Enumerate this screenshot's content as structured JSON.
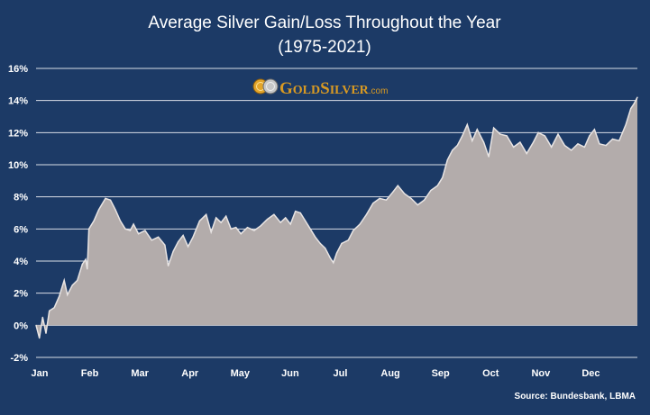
{
  "chart_data": {
    "type": "area",
    "title": "Average Silver Gain/Loss Throughout the Year",
    "subtitle": "(1975-2021)",
    "xlabel": "",
    "ylabel": "",
    "x_tick_labels": [
      "Jan",
      "Feb",
      "Mar",
      "Apr",
      "May",
      "Jun",
      "Jul",
      "Aug",
      "Sep",
      "Oct",
      "Nov",
      "Dec"
    ],
    "y_tick_labels": [
      "16%",
      "14%",
      "12%",
      "10%",
      "8%",
      "6%",
      "4%",
      "2%",
      "0%",
      "-2%"
    ],
    "ylim": [
      -2,
      16
    ],
    "y_unit": "%",
    "grid": true,
    "legend": "none",
    "fill_color": "#b3acab",
    "line_color": "#e8e4e3",
    "background_color": "#1c3a66",
    "series": [
      {
        "values": [
          {
            "x": "Jan 1",
            "y": 0.0
          },
          {
            "x": "Jan 3",
            "y": -0.8
          },
          {
            "x": "Jan 5",
            "y": 0.5
          },
          {
            "x": "Jan 7",
            "y": -0.5
          },
          {
            "x": "Jan 9",
            "y": 0.9
          },
          {
            "x": "Jan 12",
            "y": 1.1
          },
          {
            "x": "Jan 15",
            "y": 1.8
          },
          {
            "x": "Jan 18",
            "y": 2.8
          },
          {
            "x": "Jan 20",
            "y": 1.9
          },
          {
            "x": "Jan 23",
            "y": 2.5
          },
          {
            "x": "Jan 26",
            "y": 2.8
          },
          {
            "x": "Jan 29",
            "y": 3.8
          },
          {
            "x": "Jan 31",
            "y": 4.1
          },
          {
            "x": "Feb 1",
            "y": 3.5
          },
          {
            "x": "Feb 2",
            "y": 6.0
          },
          {
            "x": "Feb 5",
            "y": 6.5
          },
          {
            "x": "Feb 8",
            "y": 7.2
          },
          {
            "x": "Feb 12",
            "y": 7.9
          },
          {
            "x": "Feb 15",
            "y": 7.8
          },
          {
            "x": "Feb 18",
            "y": 7.2
          },
          {
            "x": "Feb 21",
            "y": 6.5
          },
          {
            "x": "Feb 24",
            "y": 6.0
          },
          {
            "x": "Feb 27",
            "y": 5.9
          },
          {
            "x": "Mar 1",
            "y": 6.3
          },
          {
            "x": "Mar 4",
            "y": 5.7
          },
          {
            "x": "Mar 8",
            "y": 5.9
          },
          {
            "x": "Mar 12",
            "y": 5.3
          },
          {
            "x": "Mar 16",
            "y": 5.5
          },
          {
            "x": "Mar 20",
            "y": 5.0
          },
          {
            "x": "Mar 22",
            "y": 3.7
          },
          {
            "x": "Mar 25",
            "y": 4.6
          },
          {
            "x": "Mar 28",
            "y": 5.2
          },
          {
            "x": "Mar 31",
            "y": 5.6
          },
          {
            "x": "Apr 3",
            "y": 4.9
          },
          {
            "x": "Apr 6",
            "y": 5.5
          },
          {
            "x": "Apr 10",
            "y": 6.5
          },
          {
            "x": "Apr 14",
            "y": 6.9
          },
          {
            "x": "Apr 17",
            "y": 5.8
          },
          {
            "x": "Apr 20",
            "y": 6.7
          },
          {
            "x": "Apr 23",
            "y": 6.4
          },
          {
            "x": "Apr 26",
            "y": 6.8
          },
          {
            "x": "Apr 29",
            "y": 6.0
          },
          {
            "x": "May 2",
            "y": 6.1
          },
          {
            "x": "May 5",
            "y": 5.7
          },
          {
            "x": "May 9",
            "y": 6.1
          },
          {
            "x": "May 13",
            "y": 5.9
          },
          {
            "x": "May 17",
            "y": 6.2
          },
          {
            "x": "May 21",
            "y": 6.6
          },
          {
            "x": "May 25",
            "y": 6.9
          },
          {
            "x": "May 29",
            "y": 6.4
          },
          {
            "x": "Jun 1",
            "y": 6.7
          },
          {
            "x": "Jun 4",
            "y": 6.3
          },
          {
            "x": "Jun 7",
            "y": 7.1
          },
          {
            "x": "Jun 10",
            "y": 7.0
          },
          {
            "x": "Jun 13",
            "y": 6.5
          },
          {
            "x": "Jun 16",
            "y": 6.0
          },
          {
            "x": "Jun 19",
            "y": 5.5
          },
          {
            "x": "Jun 22",
            "y": 5.1
          },
          {
            "x": "Jun 25",
            "y": 4.8
          },
          {
            "x": "Jun 28",
            "y": 4.2
          },
          {
            "x": "Jun 30",
            "y": 3.9
          },
          {
            "x": "Jul 2",
            "y": 4.5
          },
          {
            "x": "Jul 5",
            "y": 5.1
          },
          {
            "x": "Jul 9",
            "y": 5.3
          },
          {
            "x": "Jul 12",
            "y": 5.9
          },
          {
            "x": "Jul 16",
            "y": 6.3
          },
          {
            "x": "Jul 20",
            "y": 6.9
          },
          {
            "x": "Jul 24",
            "y": 7.6
          },
          {
            "x": "Jul 28",
            "y": 7.9
          },
          {
            "x": "Aug 1",
            "y": 7.8
          },
          {
            "x": "Aug 5",
            "y": 8.3
          },
          {
            "x": "Aug 8",
            "y": 8.7
          },
          {
            "x": "Aug 12",
            "y": 8.2
          },
          {
            "x": "Aug 16",
            "y": 7.9
          },
          {
            "x": "Aug 20",
            "y": 7.5
          },
          {
            "x": "Aug 24",
            "y": 7.8
          },
          {
            "x": "Aug 28",
            "y": 8.4
          },
          {
            "x": "Sep 1",
            "y": 8.7
          },
          {
            "x": "Sep 4",
            "y": 9.2
          },
          {
            "x": "Sep 7",
            "y": 10.3
          },
          {
            "x": "Sep 10",
            "y": 10.9
          },
          {
            "x": "Sep 13",
            "y": 11.2
          },
          {
            "x": "Sep 16",
            "y": 11.8
          },
          {
            "x": "Sep 19",
            "y": 12.5
          },
          {
            "x": "Sep 22",
            "y": 11.5
          },
          {
            "x": "Sep 25",
            "y": 12.2
          },
          {
            "x": "Sep 29",
            "y": 11.4
          },
          {
            "x": "Oct 2",
            "y": 10.5
          },
          {
            "x": "Oct 5",
            "y": 12.3
          },
          {
            "x": "Oct 9",
            "y": 11.9
          },
          {
            "x": "Oct 13",
            "y": 11.8
          },
          {
            "x": "Oct 17",
            "y": 11.1
          },
          {
            "x": "Oct 21",
            "y": 11.4
          },
          {
            "x": "Oct 25",
            "y": 10.7
          },
          {
            "x": "Oct 29",
            "y": 11.4
          },
          {
            "x": "Nov 1",
            "y": 12.0
          },
          {
            "x": "Nov 5",
            "y": 11.8
          },
          {
            "x": "Nov 9",
            "y": 11.1
          },
          {
            "x": "Nov 13",
            "y": 11.9
          },
          {
            "x": "Nov 17",
            "y": 11.2
          },
          {
            "x": "Nov 21",
            "y": 10.9
          },
          {
            "x": "Nov 25",
            "y": 11.3
          },
          {
            "x": "Nov 29",
            "y": 11.1
          },
          {
            "x": "Dec 2",
            "y": 11.8
          },
          {
            "x": "Dec 5",
            "y": 12.2
          },
          {
            "x": "Dec 8",
            "y": 11.3
          },
          {
            "x": "Dec 12",
            "y": 11.2
          },
          {
            "x": "Dec 16",
            "y": 11.6
          },
          {
            "x": "Dec 20",
            "y": 11.5
          },
          {
            "x": "Dec 24",
            "y": 12.5
          },
          {
            "x": "Dec 27",
            "y": 13.5
          },
          {
            "x": "Dec 29",
            "y": 13.8
          },
          {
            "x": "Dec 31",
            "y": 14.2
          }
        ]
      }
    ]
  },
  "logo": {
    "gold_silver": "GOLDSILVER",
    "domain_suffix": ".com",
    "coin_icons": [
      "gold-coin-icon",
      "silver-coin-icon"
    ],
    "brand_color": "#d99a22"
  },
  "source": "Source: Bundesbank, LBMA"
}
